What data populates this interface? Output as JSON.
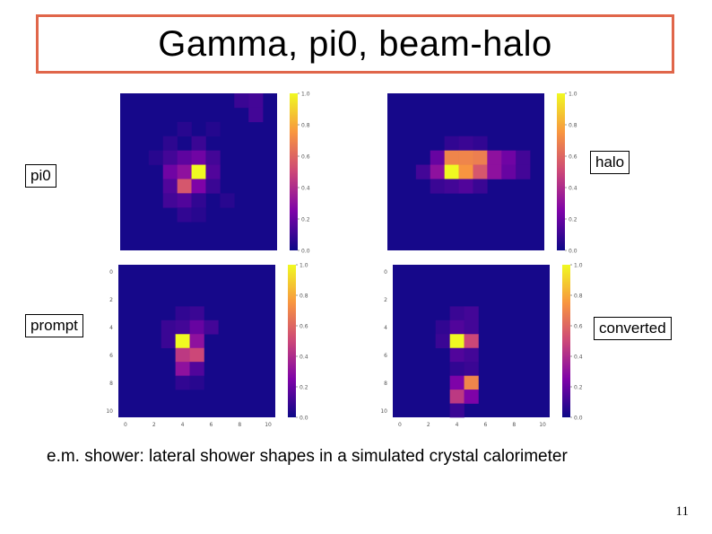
{
  "slide": {
    "title": "Gamma, pi0, beam-halo",
    "caption": "e.m. shower: lateral shower shapes in a simulated crystal calorimeter",
    "page_number": "11"
  },
  "labels": {
    "pi0": "pi0",
    "halo": "halo",
    "prompt": "prompt",
    "converted": "converted"
  },
  "colorbar": {
    "colormap": "plasma",
    "ticks_top": [
      "1.0",
      "0.8",
      "0.6",
      "0.4",
      "0.2",
      "0.0"
    ],
    "ticks_bottom": [
      "1.0",
      "0.8",
      "0.6",
      "0.4",
      "0.2",
      "0.0"
    ]
  },
  "axes": {
    "y_ticks": [
      "0",
      "2",
      "4",
      "6",
      "8",
      "10"
    ],
    "x_ticks": [
      "0",
      "2",
      "4",
      "6",
      "8",
      "10"
    ]
  },
  "chart_data": [
    {
      "type": "heatmap",
      "name": "pi0",
      "colormap": "plasma",
      "zlim": [
        0,
        1
      ],
      "cells": [
        {
          "row": 0,
          "col": 8,
          "v": 0.1
        },
        {
          "row": 0,
          "col": 9,
          "v": 0.12
        },
        {
          "row": 1,
          "col": 9,
          "v": 0.12
        },
        {
          "row": 2,
          "col": 4,
          "v": 0.06
        },
        {
          "row": 2,
          "col": 6,
          "v": 0.05
        },
        {
          "row": 3,
          "col": 3,
          "v": 0.07
        },
        {
          "row": 3,
          "col": 5,
          "v": 0.1
        },
        {
          "row": 4,
          "col": 2,
          "v": 0.06
        },
        {
          "row": 4,
          "col": 3,
          "v": 0.12
        },
        {
          "row": 4,
          "col": 4,
          "v": 0.18
        },
        {
          "row": 4,
          "col": 5,
          "v": 0.22
        },
        {
          "row": 4,
          "col": 6,
          "v": 0.12
        },
        {
          "row": 5,
          "col": 3,
          "v": 0.22
        },
        {
          "row": 5,
          "col": 4,
          "v": 0.3
        },
        {
          "row": 5,
          "col": 5,
          "v": 1.0
        },
        {
          "row": 5,
          "col": 6,
          "v": 0.15
        },
        {
          "row": 6,
          "col": 3,
          "v": 0.15
        },
        {
          "row": 6,
          "col": 4,
          "v": 0.55
        },
        {
          "row": 6,
          "col": 5,
          "v": 0.25
        },
        {
          "row": 6,
          "col": 6,
          "v": 0.1
        },
        {
          "row": 7,
          "col": 3,
          "v": 0.12
        },
        {
          "row": 7,
          "col": 4,
          "v": 0.15
        },
        {
          "row": 7,
          "col": 5,
          "v": 0.08
        },
        {
          "row": 7,
          "col": 7,
          "v": 0.06
        },
        {
          "row": 8,
          "col": 4,
          "v": 0.08
        },
        {
          "row": 8,
          "col": 5,
          "v": 0.06
        }
      ]
    },
    {
      "type": "heatmap",
      "name": "halo",
      "colormap": "plasma",
      "zlim": [
        0,
        1
      ],
      "cells": [
        {
          "row": 3,
          "col": 4,
          "v": 0.08
        },
        {
          "row": 3,
          "col": 5,
          "v": 0.1
        },
        {
          "row": 3,
          "col": 6,
          "v": 0.08
        },
        {
          "row": 4,
          "col": 3,
          "v": 0.2
        },
        {
          "row": 4,
          "col": 4,
          "v": 0.7
        },
        {
          "row": 4,
          "col": 5,
          "v": 0.7
        },
        {
          "row": 4,
          "col": 6,
          "v": 0.68
        },
        {
          "row": 4,
          "col": 7,
          "v": 0.3
        },
        {
          "row": 4,
          "col": 8,
          "v": 0.22
        },
        {
          "row": 4,
          "col": 9,
          "v": 0.12
        },
        {
          "row": 5,
          "col": 2,
          "v": 0.12
        },
        {
          "row": 5,
          "col": 3,
          "v": 0.3
        },
        {
          "row": 5,
          "col": 4,
          "v": 1.0
        },
        {
          "row": 5,
          "col": 5,
          "v": 0.75
        },
        {
          "row": 5,
          "col": 6,
          "v": 0.55
        },
        {
          "row": 5,
          "col": 7,
          "v": 0.3
        },
        {
          "row": 5,
          "col": 8,
          "v": 0.2
        },
        {
          "row": 5,
          "col": 9,
          "v": 0.12
        },
        {
          "row": 6,
          "col": 3,
          "v": 0.1
        },
        {
          "row": 6,
          "col": 4,
          "v": 0.12
        },
        {
          "row": 6,
          "col": 5,
          "v": 0.15
        },
        {
          "row": 6,
          "col": 6,
          "v": 0.1
        }
      ]
    },
    {
      "type": "heatmap",
      "name": "prompt",
      "colormap": "plasma",
      "zlim": [
        0,
        1
      ],
      "cells": [
        {
          "row": 3,
          "col": 4,
          "v": 0.08
        },
        {
          "row": 3,
          "col": 5,
          "v": 0.1
        },
        {
          "row": 4,
          "col": 3,
          "v": 0.1
        },
        {
          "row": 4,
          "col": 4,
          "v": 0.12
        },
        {
          "row": 4,
          "col": 5,
          "v": 0.2
        },
        {
          "row": 4,
          "col": 6,
          "v": 0.12
        },
        {
          "row": 5,
          "col": 3,
          "v": 0.1
        },
        {
          "row": 5,
          "col": 4,
          "v": 1.0
        },
        {
          "row": 5,
          "col": 5,
          "v": 0.3
        },
        {
          "row": 6,
          "col": 4,
          "v": 0.45
        },
        {
          "row": 6,
          "col": 5,
          "v": 0.5
        },
        {
          "row": 7,
          "col": 4,
          "v": 0.3
        },
        {
          "row": 7,
          "col": 5,
          "v": 0.15
        },
        {
          "row": 8,
          "col": 4,
          "v": 0.08
        },
        {
          "row": 8,
          "col": 5,
          "v": 0.06
        }
      ]
    },
    {
      "type": "heatmap",
      "name": "converted",
      "colormap": "plasma",
      "zlim": [
        0,
        1
      ],
      "cells": [
        {
          "row": 3,
          "col": 4,
          "v": 0.1
        },
        {
          "row": 3,
          "col": 5,
          "v": 0.12
        },
        {
          "row": 4,
          "col": 3,
          "v": 0.08
        },
        {
          "row": 4,
          "col": 4,
          "v": 0.15
        },
        {
          "row": 4,
          "col": 5,
          "v": 0.12
        },
        {
          "row": 5,
          "col": 3,
          "v": 0.1
        },
        {
          "row": 5,
          "col": 4,
          "v": 1.0
        },
        {
          "row": 5,
          "col": 5,
          "v": 0.5
        },
        {
          "row": 6,
          "col": 4,
          "v": 0.15
        },
        {
          "row": 6,
          "col": 5,
          "v": 0.12
        },
        {
          "row": 7,
          "col": 4,
          "v": 0.08
        },
        {
          "row": 7,
          "col": 5,
          "v": 0.1
        },
        {
          "row": 8,
          "col": 4,
          "v": 0.25
        },
        {
          "row": 8,
          "col": 5,
          "v": 0.7
        },
        {
          "row": 9,
          "col": 4,
          "v": 0.45
        },
        {
          "row": 9,
          "col": 5,
          "v": 0.25
        },
        {
          "row": 10,
          "col": 4,
          "v": 0.1
        }
      ]
    }
  ]
}
